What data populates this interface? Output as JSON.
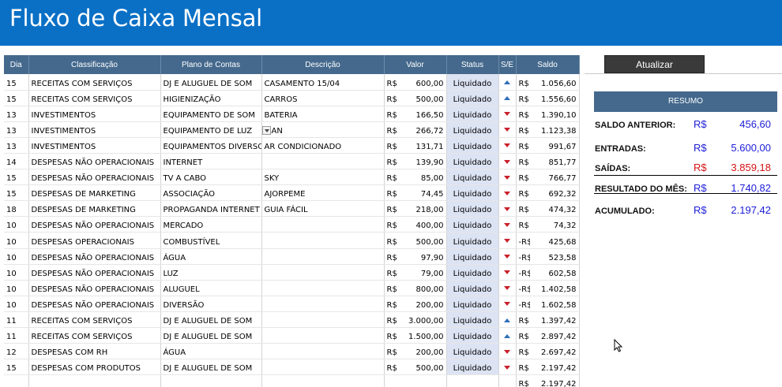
{
  "title": "Fluxo de Caixa Mensal",
  "columns": [
    "Dia",
    "Classificação",
    "Plano de Contas",
    "Descrição",
    "Valor",
    "Status",
    "S/E",
    "Saldo"
  ],
  "rows": [
    {
      "dia": "15",
      "classificacao": "RECEITAS COM SERVIÇOS",
      "plano": "DJ E ALUGUEL DE SOM",
      "descricao": "CASAMENTO 15/04",
      "rs": "R$",
      "valor": "600,00",
      "status": "Liquidado",
      "dir": "up",
      "saldo_rs": "R$",
      "saldo": "1.056,60"
    },
    {
      "dia": "15",
      "classificacao": "RECEITAS COM SERVIÇOS",
      "plano": "HIGIENIZAÇÃO",
      "descricao": "CARROS",
      "rs": "R$",
      "valor": "500,00",
      "status": "Liquidado",
      "dir": "up",
      "saldo_rs": "R$",
      "saldo": "1.556,60"
    },
    {
      "dia": "13",
      "classificacao": "INVESTIMENTOS",
      "plano": "EQUIPAMENTO DE SOM",
      "descricao": "BATERIA",
      "rs": "R$",
      "valor": "166,50",
      "status": "Liquidado",
      "dir": "down",
      "saldo_rs": "R$",
      "saldo": "1.390,10"
    },
    {
      "dia": "13",
      "classificacao": "INVESTIMENTOS",
      "plano": "EQUIPAMENTO DE LUZ",
      "descricao": "AN",
      "rs": "R$",
      "valor": "266,72",
      "status": "Liquidado",
      "dir": "down",
      "saldo_rs": "R$",
      "saldo": "1.123,38"
    },
    {
      "dia": "13",
      "classificacao": "INVESTIMENTOS",
      "plano": "EQUIPAMENTOS DIVERSOS",
      "descricao": "AR CONDICIONADO",
      "rs": "R$",
      "valor": "131,71",
      "status": "Liquidado",
      "dir": "down",
      "saldo_rs": "R$",
      "saldo": "991,67"
    },
    {
      "dia": "14",
      "classificacao": "DESPESAS NÃO OPERACIONAIS",
      "plano": "INTERNET",
      "descricao": "",
      "rs": "R$",
      "valor": "139,90",
      "status": "Liquidado",
      "dir": "down",
      "saldo_rs": "R$",
      "saldo": "851,77"
    },
    {
      "dia": "15",
      "classificacao": "DESPESAS NÃO OPERACIONAIS",
      "plano": "TV A CABO",
      "descricao": "SKY",
      "rs": "R$",
      "valor": "85,00",
      "status": "Liquidado",
      "dir": "down",
      "saldo_rs": "R$",
      "saldo": "766,77"
    },
    {
      "dia": "15",
      "classificacao": "DESPESAS DE MARKETING",
      "plano": "ASSOCIAÇÃO",
      "descricao": "AJORPEME",
      "rs": "R$",
      "valor": "74,45",
      "status": "Liquidado",
      "dir": "down",
      "saldo_rs": "R$",
      "saldo": "692,32"
    },
    {
      "dia": "18",
      "classificacao": "DESPESAS DE MARKETING",
      "plano": "PROPAGANDA INTERNET",
      "descricao": "GUIA FÁCIL",
      "rs": "R$",
      "valor": "218,00",
      "status": "Liquidado",
      "dir": "down",
      "saldo_rs": "R$",
      "saldo": "474,32"
    },
    {
      "dia": "10",
      "classificacao": "DESPESAS NÃO OPERACIONAIS",
      "plano": "MERCADO",
      "descricao": "",
      "rs": "R$",
      "valor": "400,00",
      "status": "Liquidado",
      "dir": "down",
      "saldo_rs": "R$",
      "saldo": "74,32"
    },
    {
      "dia": "10",
      "classificacao": "DESPESAS OPERACIONAIS",
      "plano": "COMBUSTÍVEL",
      "descricao": "",
      "rs": "R$",
      "valor": "500,00",
      "status": "Liquidado",
      "dir": "down",
      "saldo_rs": "-R$",
      "saldo": "425,68"
    },
    {
      "dia": "10",
      "classificacao": "DESPESAS NÃO OPERACIONAIS",
      "plano": "ÁGUA",
      "descricao": "",
      "rs": "R$",
      "valor": "97,90",
      "status": "Liquidado",
      "dir": "down",
      "saldo_rs": "-R$",
      "saldo": "523,58"
    },
    {
      "dia": "10",
      "classificacao": "DESPESAS NÃO OPERACIONAIS",
      "plano": "LUZ",
      "descricao": "",
      "rs": "R$",
      "valor": "79,00",
      "status": "Liquidado",
      "dir": "down",
      "saldo_rs": "-R$",
      "saldo": "602,58"
    },
    {
      "dia": "10",
      "classificacao": "DESPESAS NÃO OPERACIONAIS",
      "plano": "ALUGUEL",
      "descricao": "",
      "rs": "R$",
      "valor": "800,00",
      "status": "Liquidado",
      "dir": "down",
      "saldo_rs": "-R$",
      "saldo": "1.402,58"
    },
    {
      "dia": "10",
      "classificacao": "DESPESAS NÃO OPERACIONAIS",
      "plano": "DIVERSÃO",
      "descricao": "",
      "rs": "R$",
      "valor": "200,00",
      "status": "Liquidado",
      "dir": "down",
      "saldo_rs": "-R$",
      "saldo": "1.602,58"
    },
    {
      "dia": "11",
      "classificacao": "RECEITAS COM SERVIÇOS",
      "plano": "DJ E ALUGUEL DE SOM",
      "descricao": "",
      "rs": "R$",
      "valor": "3.000,00",
      "status": "Liquidado",
      "dir": "up",
      "saldo_rs": "R$",
      "saldo": "1.397,42"
    },
    {
      "dia": "11",
      "classificacao": "RECEITAS COM SERVIÇOS",
      "plano": "DJ E ALUGUEL DE SOM",
      "descricao": "",
      "rs": "R$",
      "valor": "1.500,00",
      "status": "Liquidado",
      "dir": "up",
      "saldo_rs": "R$",
      "saldo": "2.897,42"
    },
    {
      "dia": "12",
      "classificacao": "DESPESAS COM RH",
      "plano": "ÁGUA",
      "descricao": "",
      "rs": "R$",
      "valor": "200,00",
      "status": "Liquidado",
      "dir": "down",
      "saldo_rs": "R$",
      "saldo": "2.697,42"
    },
    {
      "dia": "15",
      "classificacao": "DESPESAS COM PRODUTOS",
      "plano": "DJ E ALUGUEL DE SOM",
      "descricao": "",
      "rs": "R$",
      "valor": "500,00",
      "status": "Liquidado",
      "dir": "down",
      "saldo_rs": "R$",
      "saldo": "2.197,42"
    },
    {
      "dia": "",
      "classificacao": "",
      "plano": "",
      "descricao": "",
      "rs": "",
      "valor": "",
      "status": "",
      "dir": "",
      "saldo_rs": "R$",
      "saldo": "2.197,42"
    }
  ],
  "dropdown_row": 3,
  "update_button": "Atualizar",
  "summary": {
    "header": "RESUMO",
    "saldo_anterior": {
      "label": "SALDO ANTERIOR:",
      "currency": "R$",
      "value": "456,60"
    },
    "entradas": {
      "label": "ENTRADAS:",
      "currency": "R$",
      "value": "5.600,00"
    },
    "saidas": {
      "label": "SAÍDAS:",
      "currency": "R$",
      "value": "3.859,18"
    },
    "resultado": {
      "label": "RESULTADO DO MÊS:",
      "currency": "R$",
      "value": "1.740,82"
    },
    "acumulado": {
      "label": "ACUMULADO:",
      "currency": "R$",
      "value": "2.197,42"
    }
  },
  "colors": {
    "banner": "#0a70c6",
    "header": "#44698d",
    "status_bg": "#dce3f3",
    "status_text": "#1f6fc5",
    "up": "#2e6db8",
    "down": "#c8202a",
    "blue_value": "#1c1cd8",
    "red_value": "#d41313"
  }
}
